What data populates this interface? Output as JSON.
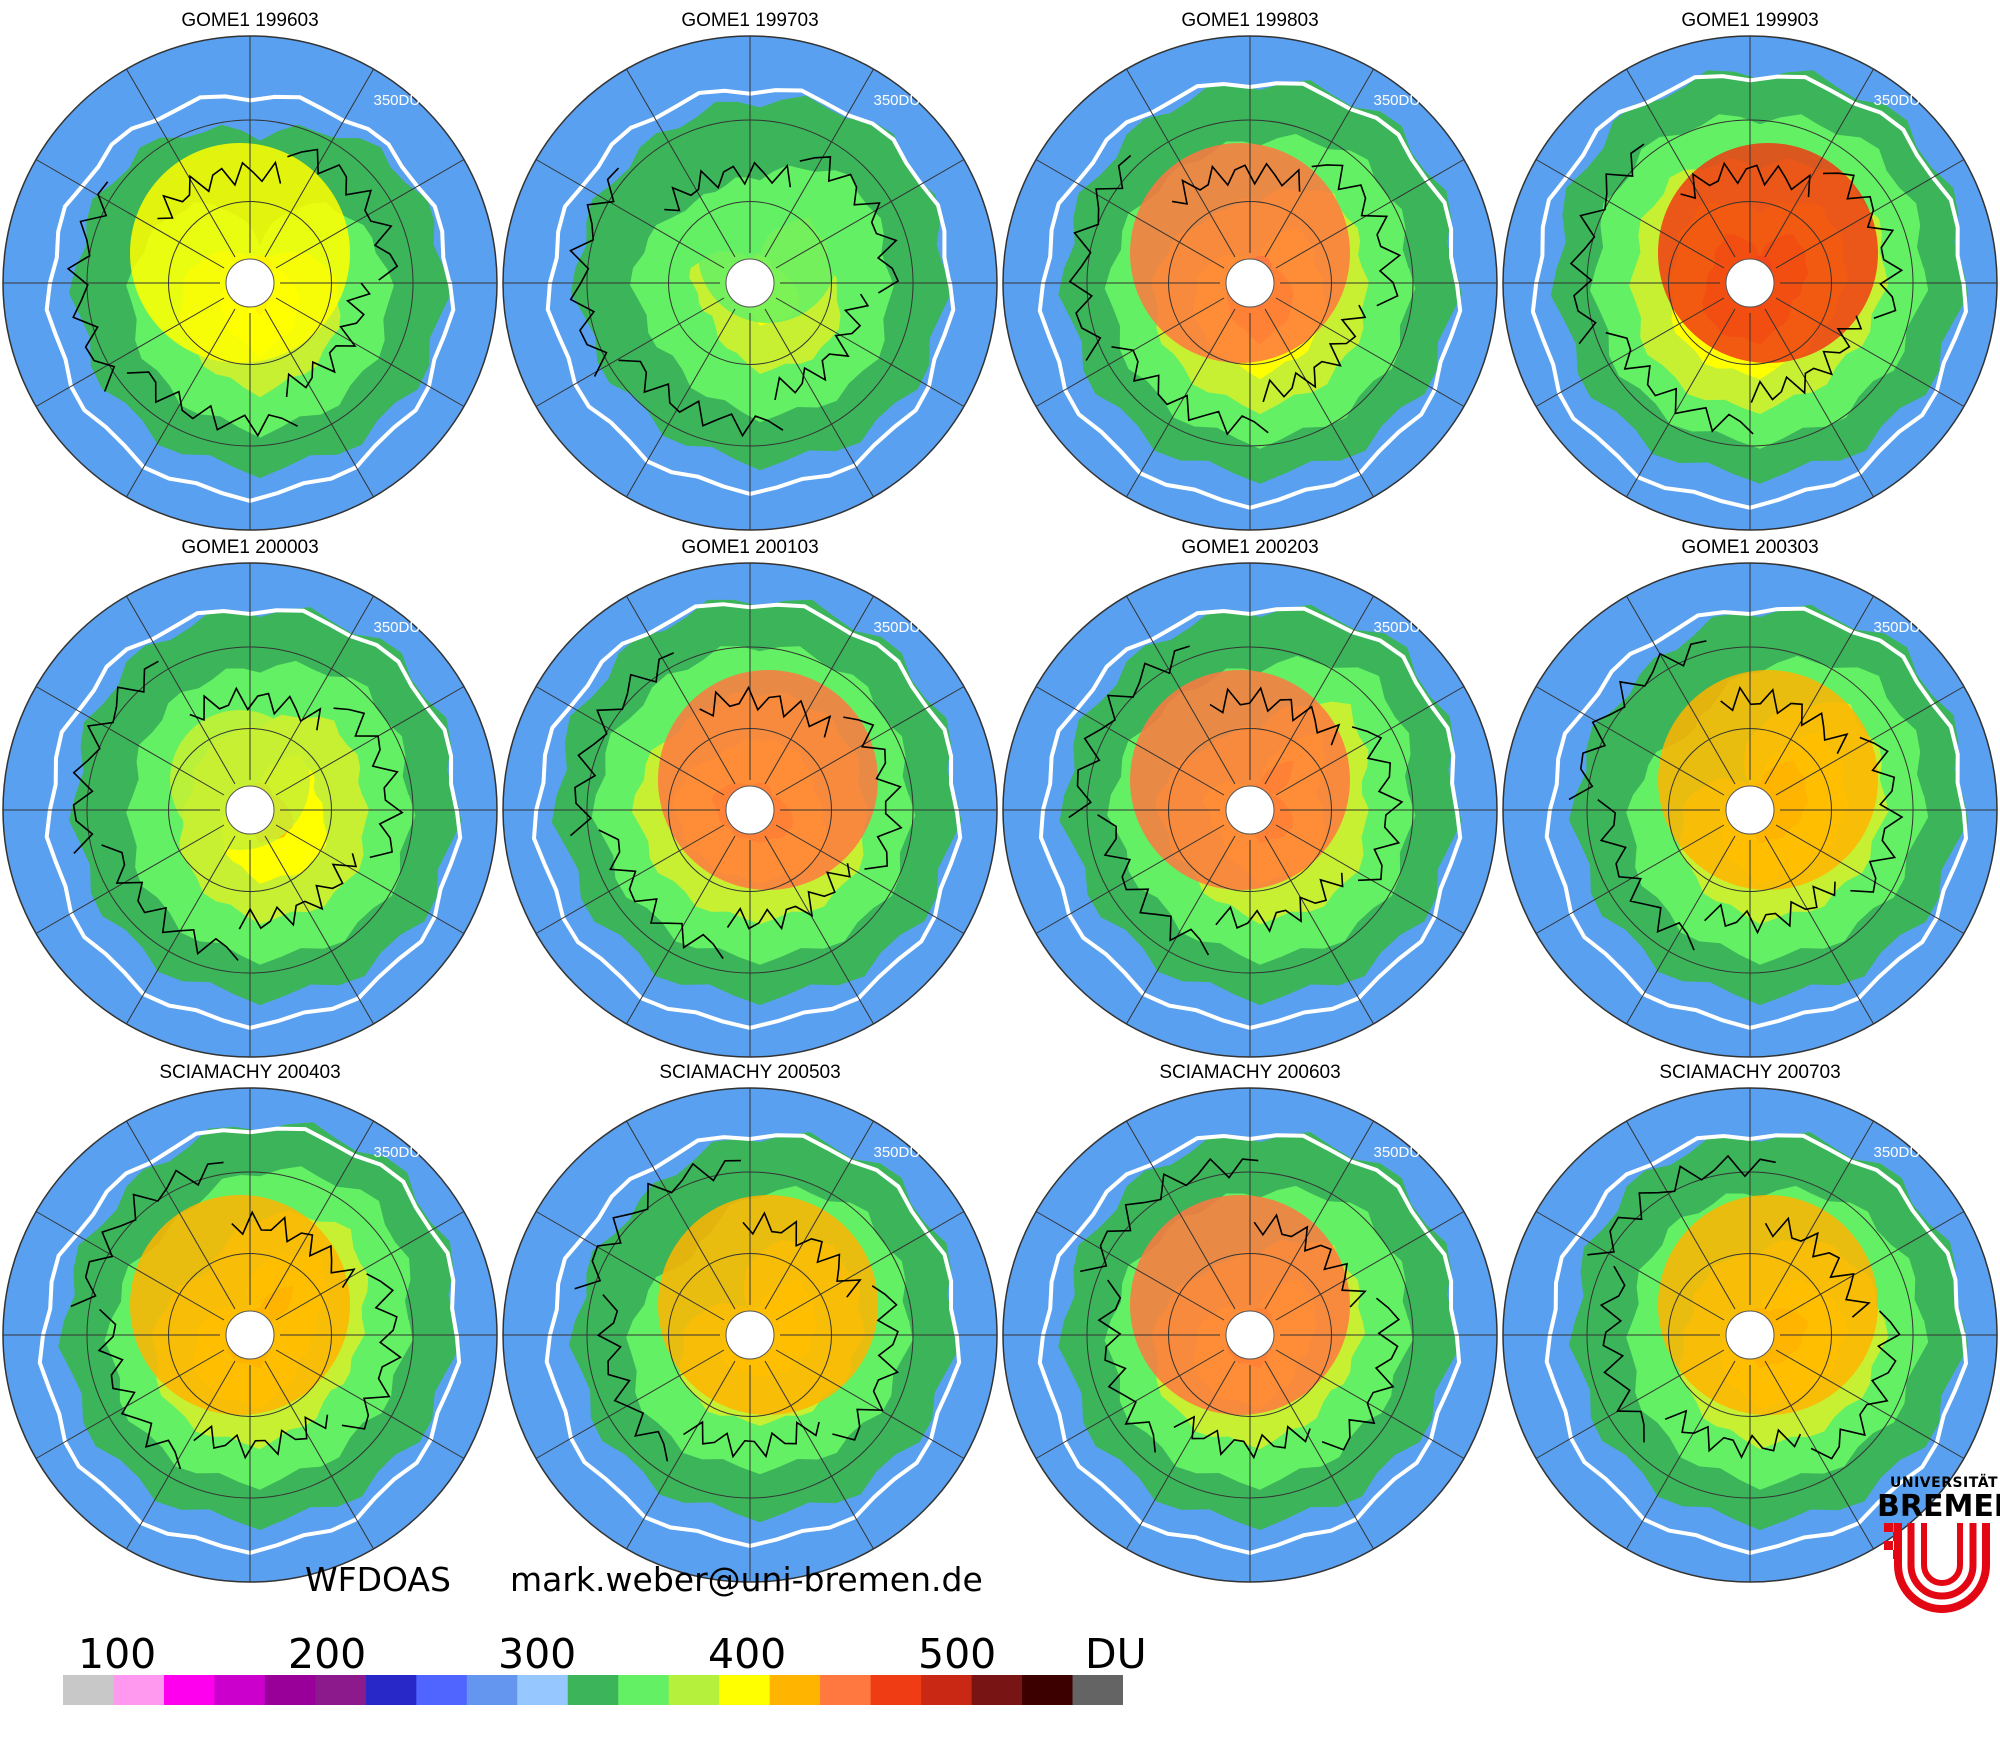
{
  "figure": {
    "contour_label": "350DU",
    "panels": [
      {
        "title": "GOME1 199603",
        "pattern": [
          2,
          3,
          4,
          3,
          2,
          1,
          0,
          1
        ],
        "core": 2
      },
      {
        "title": "GOME1 199703",
        "pattern": [
          2,
          3,
          3,
          2,
          2,
          1,
          1,
          2
        ],
        "core": 0
      },
      {
        "title": "GOME1 199803",
        "pattern": [
          3,
          4,
          5,
          4,
          3,
          2,
          2,
          3
        ],
        "core": 4
      },
      {
        "title": "GOME1 199903",
        "pattern": [
          4,
          4,
          5,
          5,
          4,
          4,
          3,
          4
        ],
        "core": 5
      },
      {
        "title": "GOME1 200003",
        "pattern": [
          3,
          4,
          4,
          3,
          2,
          2,
          2,
          3
        ],
        "core": 1
      },
      {
        "title": "GOME1 200103",
        "pattern": [
          3,
          4,
          4,
          4,
          4,
          3,
          3,
          3
        ],
        "core": 4
      },
      {
        "title": "GOME1 200203",
        "pattern": [
          3,
          4,
          4,
          3,
          3,
          2,
          2,
          4
        ],
        "core": 4
      },
      {
        "title": "GOME1 200303",
        "pattern": [
          4,
          4,
          4,
          3,
          2,
          1,
          2,
          4
        ],
        "core": 3
      },
      {
        "title": "SCIAMACHY 200403",
        "pattern": [
          3,
          3,
          4,
          4,
          3,
          2,
          3,
          4
        ],
        "core": 3
      },
      {
        "title": "SCIAMACHY 200503",
        "pattern": [
          3,
          3,
          3,
          3,
          2,
          1,
          2,
          3
        ],
        "core": 3
      },
      {
        "title": "SCIAMACHY 200603",
        "pattern": [
          3,
          3,
          4,
          4,
          3,
          2,
          2,
          3
        ],
        "core": 4
      },
      {
        "title": "SCIAMACHY 200703",
        "pattern": [
          4,
          4,
          4,
          3,
          2,
          2,
          2,
          3
        ],
        "core": 3
      }
    ]
  },
  "footer": {
    "algorithm": "WFDOAS",
    "contact": "mark.weber@uni-bremen.de"
  },
  "colorbar": {
    "tick_labels": [
      "100",
      "200",
      "300",
      "400",
      "500"
    ],
    "unit": "DU",
    "colors": [
      "#c8c8c8",
      "#ff99f0",
      "#ff00ee",
      "#cc00cc",
      "#990099",
      "#8c1a8c",
      "#2828c8",
      "#5064ff",
      "#6496f0",
      "#96c8ff",
      "#3cb45a",
      "#64f064",
      "#b4f03c",
      "#ffff00",
      "#ffb400",
      "#ff7840",
      "#f03c14",
      "#c82814",
      "#781414",
      "#3c0000",
      "#646464"
    ]
  },
  "logo": {
    "line1": "UNIVERSITÄT",
    "line2": "BREMEN",
    "colors": {
      "red": "#e30613"
    }
  }
}
